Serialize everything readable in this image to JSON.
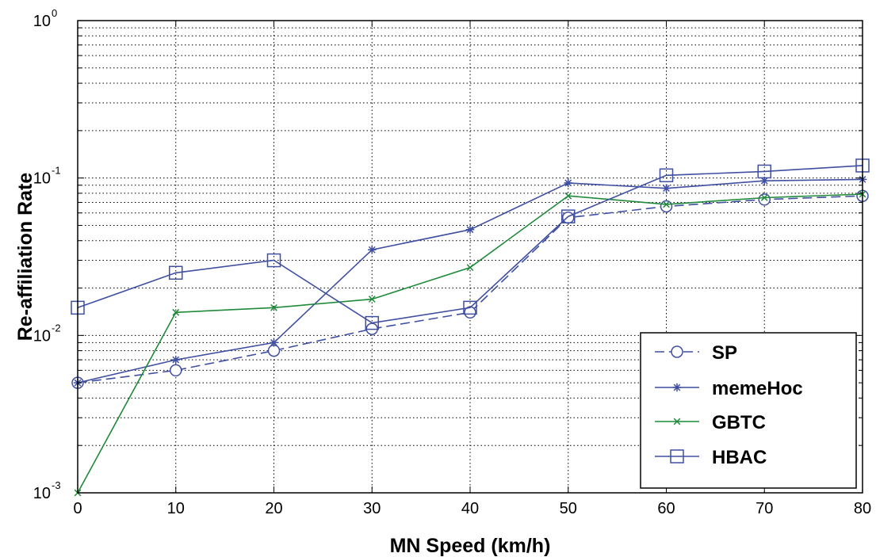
{
  "chart_data": {
    "type": "line",
    "title": "",
    "xlabel": "MN Speed (km/h)",
    "ylabel": "Re-affiliation Rate",
    "x": [
      0,
      10,
      20,
      30,
      40,
      50,
      60,
      70,
      80
    ],
    "x_tick_labels": [
      "0",
      "10",
      "20",
      "30",
      "40",
      "50",
      "60",
      "70",
      "80"
    ],
    "xlim": [
      0,
      80
    ],
    "yscale": "log",
    "ylim": [
      0.001,
      1
    ],
    "y_ticks": [
      {
        "value": 0.001,
        "base": "10",
        "exp": "-3"
      },
      {
        "value": 0.01,
        "base": "10",
        "exp": "-2"
      },
      {
        "value": 0.1,
        "base": "10",
        "exp": "-1"
      },
      {
        "value": 1,
        "base": "10",
        "exp": "0"
      }
    ],
    "grid": "on (dotted, major and minor)",
    "legend_position": "lower-right",
    "series": [
      {
        "name": "SP",
        "color": "#3f4fa1",
        "dash": "dashed",
        "marker": "circle",
        "values": [
          0.005,
          0.006,
          0.008,
          0.011,
          0.014,
          0.056,
          0.066,
          0.073,
          0.077
        ]
      },
      {
        "name": "memeHoc",
        "color": "#3f4fa1",
        "dash": "solid",
        "marker": "star",
        "values": [
          0.005,
          0.007,
          0.009,
          0.035,
          0.047,
          0.093,
          0.086,
          0.096,
          0.098
        ]
      },
      {
        "name": "GBTC",
        "color": "#1f8a3a",
        "dash": "solid",
        "marker": "x",
        "values": [
          0.001,
          0.014,
          0.015,
          0.017,
          0.027,
          0.077,
          0.068,
          0.075,
          0.079
        ]
      },
      {
        "name": "HBAC",
        "color": "#3f4fa1",
        "dash": "solid",
        "marker": "square",
        "values": [
          0.015,
          0.025,
          0.03,
          0.012,
          0.015,
          0.057,
          0.104,
          0.11,
          0.12
        ]
      }
    ]
  }
}
